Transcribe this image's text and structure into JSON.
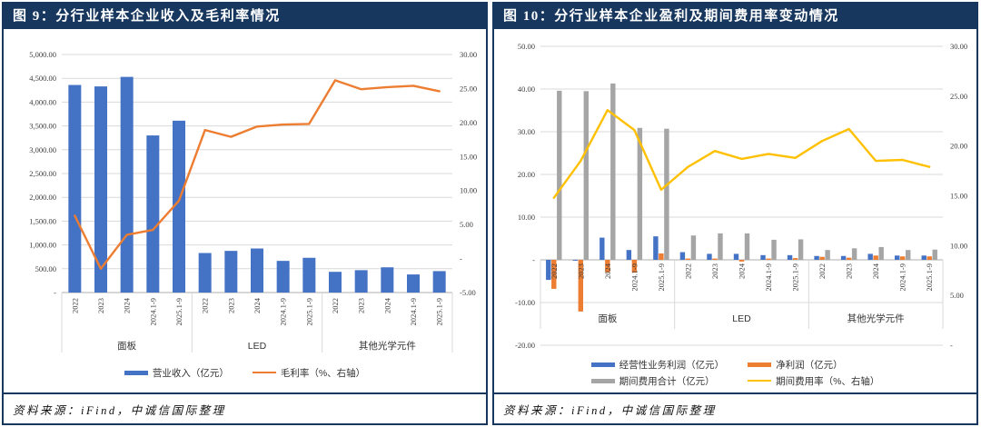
{
  "panels": [
    {
      "title": "图 9：分行业样本企业收入及毛利率情况",
      "source": "资料来源：iFind，中诚信国际整理"
    },
    {
      "title": "图 10：分行业样本企业盈利及期间费用率变动情况",
      "source": "资料来源：iFind，中诚信国际整理"
    }
  ],
  "colors": {
    "header_navy": "#17375E",
    "bar_blue": "#4472C4",
    "bar_orange": "#ED7D31",
    "bar_gray": "#A5A5A5",
    "line_yellow": "#FFC000",
    "gridline": "#D9D9D9",
    "axis_line": "#BFBFBF"
  },
  "chart_data": [
    {
      "type": "bar+line",
      "title": "图 9：分行业样本企业收入及毛利率情况",
      "groups": [
        {
          "label": "面板"
        },
        {
          "label": "LED"
        },
        {
          "label": "其他光学元件"
        }
      ],
      "categories_per_group": [
        "2022",
        "2023",
        "2024",
        "2024.1-9",
        "2025.1-9"
      ],
      "axis_left": {
        "min": 0,
        "max": 5000,
        "step": 500,
        "tick_labels": [
          "-",
          "500.00",
          "1,000.00",
          "1,500.00",
          "2,000.00",
          "2,500.00",
          "3,000.00",
          "3,500.00",
          "4,000.00",
          "4,500.00",
          "5,000.00"
        ]
      },
      "axis_right": {
        "min": -5,
        "max": 30,
        "step": 5,
        "tick_labels": [
          "-5.00",
          "-",
          "5.00",
          "10.00",
          "15.00",
          "20.00",
          "25.00",
          "30.00"
        ]
      },
      "series": [
        {
          "name": "营业收入（亿元）",
          "type": "bar",
          "axis": "left",
          "color": "#4472C4",
          "values": [
            4360,
            4330,
            4530,
            3300,
            3610,
            830,
            875,
            925,
            665,
            730,
            435,
            470,
            530,
            380,
            450
          ]
        },
        {
          "name": "毛利率（%、右轴）",
          "type": "line",
          "axis": "right",
          "color": "#ED7D31",
          "values": [
            6.3,
            -1.5,
            3.5,
            4.2,
            8.5,
            18.9,
            17.9,
            19.4,
            19.7,
            19.8,
            26.2,
            24.9,
            25.2,
            25.4,
            24.6
          ]
        }
      ],
      "legend_position": "bottom",
      "grid": true
    },
    {
      "type": "bar+line",
      "title": "图 10：分行业样本企业盈利及期间费用率变动情况",
      "groups": [
        {
          "label": "面板"
        },
        {
          "label": "LED"
        },
        {
          "label": "其他光学元件"
        }
      ],
      "categories_per_group": [
        "2022",
        "2023",
        "2024",
        "2024.1-9",
        "2025.1-9"
      ],
      "axis_left": {
        "min": -20,
        "max": 50,
        "step": 10,
        "tick_labels": [
          "-20.00",
          "-10.00",
          "-",
          "10.00",
          "20.00",
          "30.00",
          "40.00",
          "50.00"
        ]
      },
      "axis_right": {
        "min": 0,
        "max": 30,
        "step": 5,
        "tick_labels": [
          "-",
          "5.00",
          "10.00",
          "15.00",
          "20.00",
          "25.00",
          "30.00"
        ]
      },
      "series": [
        {
          "name": "经营性业务利润（亿元）",
          "type": "bar",
          "axis": "left",
          "color": "#4472C4",
          "values": [
            -4.7,
            -0.2,
            5.2,
            2.3,
            5.5,
            1.8,
            1.4,
            1.4,
            1.1,
            1.1,
            0.9,
            0.9,
            1.4,
            1.0,
            1.0
          ]
        },
        {
          "name": "净利润（亿元）",
          "type": "bar",
          "axis": "left",
          "color": "#ED7D31",
          "values": [
            -6.8,
            -12.1,
            -3.0,
            -3.0,
            1.5,
            0.3,
            0.3,
            -0.4,
            0.3,
            0.4,
            0.7,
            0.5,
            1.0,
            0.8,
            0.8
          ]
        },
        {
          "name": "期间费用合计（亿元）",
          "type": "bar",
          "axis": "left",
          "color": "#A5A5A5",
          "values": [
            39.6,
            39.5,
            41.3,
            30.9,
            30.7,
            5.7,
            6.2,
            6.2,
            4.7,
            4.8,
            2.3,
            2.7,
            3.0,
            2.3,
            2.4
          ]
        },
        {
          "name": "期间费用率（%、右轴）",
          "type": "line",
          "axis": "right",
          "color": "#FFC000",
          "values": [
            14.8,
            18.5,
            23.6,
            21.6,
            15.6,
            17.9,
            19.5,
            18.7,
            19.2,
            18.8,
            20.5,
            21.7,
            18.5,
            18.6,
            17.9
          ]
        }
      ],
      "legend_position": "bottom",
      "grid": true
    }
  ]
}
